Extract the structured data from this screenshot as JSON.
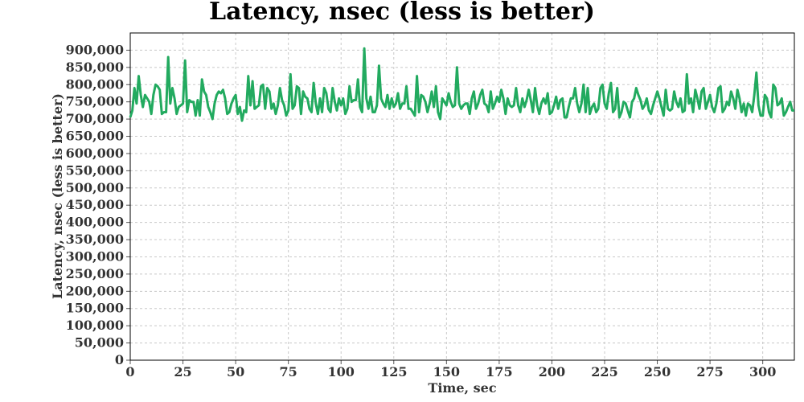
{
  "chart_data": {
    "type": "line",
    "title": "Latency, nsec (less is better)",
    "xlabel": "Time, sec",
    "ylabel": "Latency, nsec (less is better)",
    "xlim": [
      0,
      315
    ],
    "ylim": [
      0,
      950000
    ],
    "xticks": [
      0,
      25,
      50,
      75,
      100,
      125,
      150,
      175,
      200,
      225,
      250,
      275,
      300
    ],
    "yticks": [
      0,
      50000,
      100000,
      150000,
      200000,
      250000,
      300000,
      350000,
      400000,
      450000,
      500000,
      550000,
      600000,
      650000,
      700000,
      750000,
      800000,
      850000,
      900000
    ],
    "ytick_labels": [
      "0",
      "50,000",
      "100,000",
      "150,000",
      "200,000",
      "250,000",
      "300,000",
      "350,000",
      "400,000",
      "450,000",
      "500,000",
      "550,000",
      "600,000",
      "650,000",
      "700,000",
      "750,000",
      "800,000",
      "850,000",
      "900,000"
    ],
    "grid": true,
    "colors": {
      "series": "#22aa5f",
      "frame": "#000000",
      "grid": "#c8c8c8"
    },
    "series": [
      {
        "name": "",
        "x_start": 0,
        "x_step": 1,
        "values": [
          705000,
          725000,
          790000,
          745000,
          825000,
          770000,
          735000,
          770000,
          760000,
          750000,
          715000,
          770000,
          800000,
          795000,
          785000,
          715000,
          720000,
          720000,
          880000,
          745000,
          790000,
          760000,
          715000,
          735000,
          740000,
          745000,
          870000,
          720000,
          755000,
          750000,
          750000,
          710000,
          755000,
          710000,
          815000,
          780000,
          770000,
          735000,
          720000,
          700000,
          745000,
          770000,
          780000,
          775000,
          785000,
          760000,
          715000,
          720000,
          745000,
          760000,
          770000,
          715000,
          735000,
          695000,
          725000,
          720000,
          825000,
          740000,
          810000,
          730000,
          735000,
          740000,
          795000,
          800000,
          730000,
          790000,
          780000,
          730000,
          745000,
          715000,
          740000,
          790000,
          755000,
          740000,
          710000,
          725000,
          830000,
          730000,
          740000,
          795000,
          790000,
          715000,
          780000,
          765000,
          760000,
          730000,
          720000,
          805000,
          745000,
          715000,
          760000,
          720000,
          790000,
          775000,
          730000,
          720000,
          790000,
          750000,
          725000,
          760000,
          740000,
          760000,
          715000,
          730000,
          795000,
          750000,
          755000,
          755000,
          815000,
          735000,
          720000,
          905000,
          760000,
          730000,
          765000,
          720000,
          720000,
          740000,
          855000,
          760000,
          745000,
          735000,
          770000,
          730000,
          760000,
          735000,
          745000,
          775000,
          730000,
          745000,
          745000,
          795000,
          730000,
          730000,
          720000,
          710000,
          825000,
          720000,
          770000,
          765000,
          750000,
          720000,
          745000,
          780000,
          735000,
          795000,
          720000,
          700000,
          760000,
          750000,
          740000,
          775000,
          750000,
          735000,
          740000,
          850000,
          745000,
          730000,
          740000,
          745000,
          745000,
          715000,
          760000,
          780000,
          730000,
          745000,
          770000,
          785000,
          745000,
          740000,
          720000,
          780000,
          730000,
          745000,
          765000,
          750000,
          785000,
          760000,
          715000,
          760000,
          740000,
          735000,
          740000,
          790000,
          740000,
          720000,
          760000,
          735000,
          755000,
          785000,
          755000,
          720000,
          790000,
          740000,
          715000,
          745000,
          760000,
          745000,
          775000,
          715000,
          720000,
          740000,
          765000,
          730000,
          755000,
          760000,
          705000,
          705000,
          735000,
          760000,
          760000,
          790000,
          745000,
          720000,
          745000,
          800000,
          720000,
          790000,
          715000,
          735000,
          745000,
          720000,
          730000,
          790000,
          800000,
          745000,
          730000,
          775000,
          805000,
          720000,
          730000,
          790000,
          705000,
          720000,
          750000,
          745000,
          725000,
          705000,
          750000,
          760000,
          790000,
          770000,
          755000,
          730000,
          740000,
          760000,
          725000,
          715000,
          740000,
          760000,
          780000,
          760000,
          735000,
          710000,
          785000,
          730000,
          725000,
          730000,
          780000,
          750000,
          735000,
          760000,
          720000,
          725000,
          830000,
          745000,
          760000,
          720000,
          785000,
          760000,
          730000,
          780000,
          790000,
          730000,
          750000,
          770000,
          735000,
          720000,
          745000,
          790000,
          795000,
          720000,
          730000,
          750000,
          740000,
          780000,
          760000,
          730000,
          785000,
          760000,
          720000,
          745000,
          710000,
          745000,
          740000,
          720000,
          770000,
          835000,
          740000,
          710000,
          710000,
          770000,
          760000,
          720000,
          705000,
          800000,
          790000,
          740000,
          745000,
          760000,
          710000,
          720000,
          735000,
          750000,
          725000,
          725000
        ]
      }
    ]
  }
}
